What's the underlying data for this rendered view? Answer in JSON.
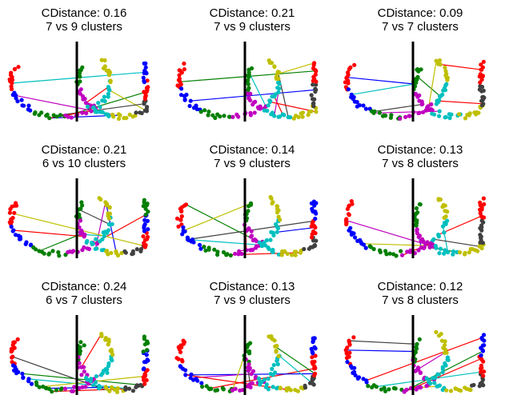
{
  "chart_data": [
    {
      "type": "scatter",
      "title": "CDistance: 0.16",
      "subtitle": "7 vs 9 clusters",
      "seed": 3
    },
    {
      "type": "scatter",
      "title": "CDistance: 0.21",
      "subtitle": "7 vs 9 clusters",
      "seed": 11
    },
    {
      "type": "scatter",
      "title": "CDistance: 0.09",
      "subtitle": "7 vs 7 clusters",
      "seed": 19
    },
    {
      "type": "scatter",
      "title": "CDistance: 0.21",
      "subtitle": "6 vs 10 clusters",
      "seed": 27
    },
    {
      "type": "scatter",
      "title": "CDistance: 0.14",
      "subtitle": "7 vs 9 clusters",
      "seed": 35
    },
    {
      "type": "scatter",
      "title": "CDistance: 0.13",
      "subtitle": "7 vs 8 clusters",
      "seed": 43
    },
    {
      "type": "scatter",
      "title": "CDistance: 0.24",
      "subtitle": "6 vs 7 clusters",
      "seed": 51
    },
    {
      "type": "scatter",
      "title": "CDistance: 0.13",
      "subtitle": "7 vs 9 clusters",
      "seed": 59
    },
    {
      "type": "scatter",
      "title": "CDistance: 0.12",
      "subtitle": "7 vs 8 clusters",
      "seed": 67
    }
  ],
  "colors": {
    "red": "#ff0000",
    "blue": "#0000ff",
    "green": "#007f00",
    "magenta": "#bf00bf",
    "cyan": "#00bfbf",
    "yellow": "#bfbf00",
    "gray": "#404040",
    "divider": "#000000"
  },
  "palette": [
    "#ff0000",
    "#0000ff",
    "#007f00",
    "#bf00bf",
    "#00bfbf",
    "#bfbf00",
    "#404040"
  ]
}
